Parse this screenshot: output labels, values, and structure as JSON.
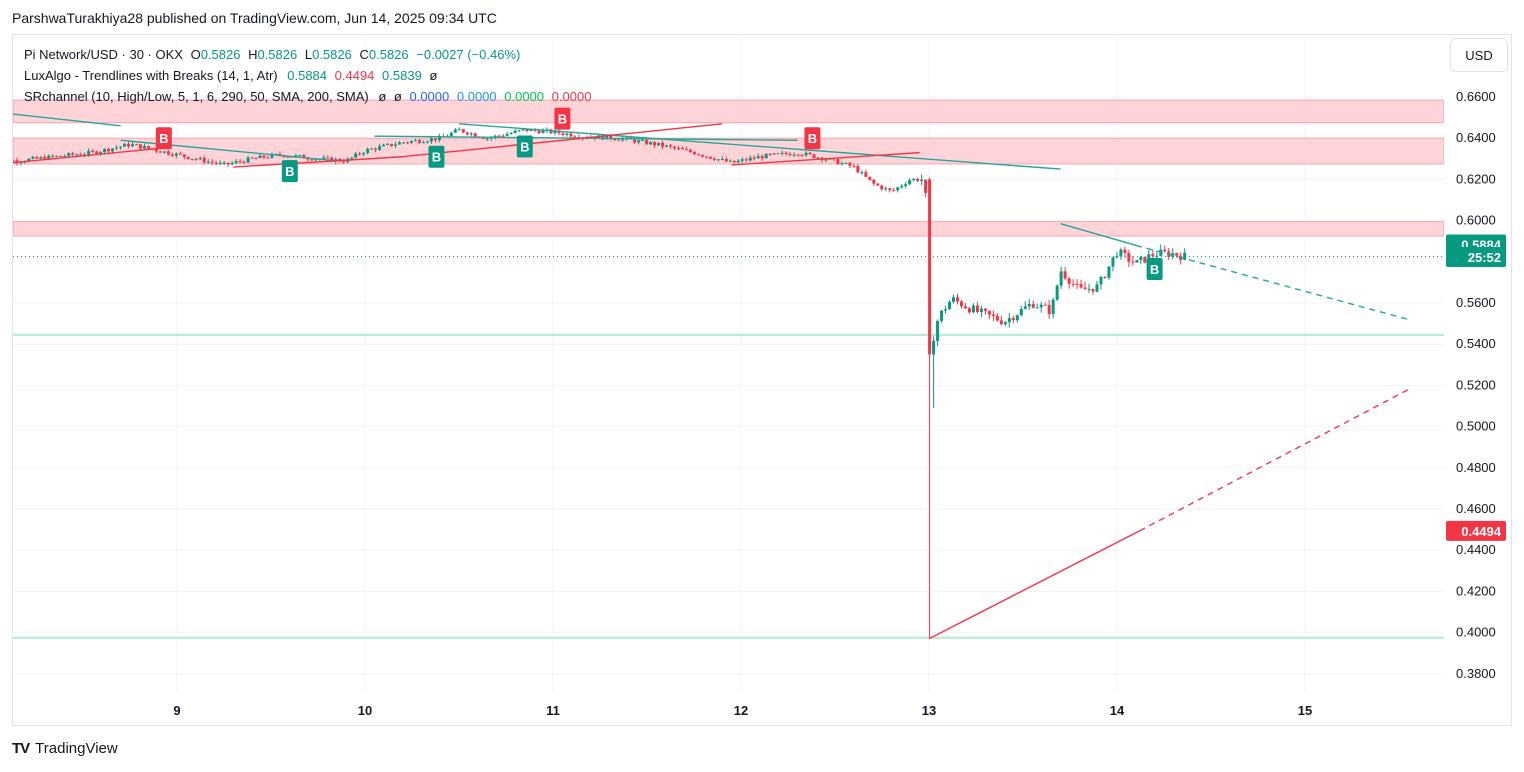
{
  "header": {
    "published_by": "ParshwaTurakhiya28 published on TradingView.com, Jun 14, 2025 09:34 UTC"
  },
  "legend": {
    "symbol": "Pi Network/USD · 30 · OKX",
    "ohlc": {
      "o_label": "O",
      "o": "0.5826",
      "h_label": "H",
      "h": "0.5826",
      "l_label": "L",
      "l": "0.5826",
      "c_label": "C",
      "c": "0.5826",
      "change": "−0.0027 (−0.46%)"
    },
    "indicator1": {
      "name": "LuxAlgo - Trendlines with Breaks (14, 1, Atr)",
      "v1": "0.5884",
      "v2": "0.4494",
      "v3": "0.5839",
      "v4": "ø"
    },
    "indicator2": {
      "name": "SRchannel (10, High/Low, 5, 1, 6, 290, 50, SMA, 200, SMA)",
      "n1": "ø",
      "n2": "ø",
      "v1": "0.0000",
      "v2": "0.0000",
      "v3": "0.0000",
      "v4": "0.0000"
    }
  },
  "currency_button": "USD",
  "footer": {
    "logo": "TV",
    "brand": "TradingView"
  },
  "colors": {
    "up": "#089981",
    "down": "#f23645",
    "zone": "#ffcdd2",
    "support": "#b2ebd0",
    "grid": "#f0f3fa"
  },
  "chart_data": {
    "type": "candlestick",
    "y_axis": {
      "ticks": [
        "0.6600",
        "0.6400",
        "0.6200",
        "0.6000",
        "0.5800",
        "0.5600",
        "0.5400",
        "0.5200",
        "0.5000",
        "0.4800",
        "0.4600",
        "0.4400",
        "0.4200",
        "0.4000",
        "0.3800"
      ],
      "range": [
        0.372,
        0.68
      ]
    },
    "x_axis": {
      "ticks": [
        "9",
        "10",
        "11",
        "12",
        "13",
        "14",
        "15"
      ]
    },
    "price_labels": [
      {
        "value": 0.5884,
        "text": "0.5884",
        "color": "#089981"
      },
      {
        "value": 0.5823,
        "text": "25:52",
        "color": "#089981"
      },
      {
        "value": 0.4494,
        "text": "0.4494",
        "color": "#f23645"
      }
    ],
    "resistance_zones": [
      {
        "low": 0.6475,
        "high": 0.6585
      },
      {
        "low": 0.6275,
        "high": 0.64
      },
      {
        "low": 0.5925,
        "high": 0.5995
      }
    ],
    "support_lines": [
      0.5445,
      0.3975
    ],
    "last_price": 0.5826,
    "trendlines": [
      {
        "color": "#26a69a",
        "dashed": false,
        "points": [
          [
            8.0,
            0.653
          ],
          [
            8.7,
            0.646
          ]
        ]
      },
      {
        "color": "#26a69a",
        "dashed": false,
        "points": [
          [
            8.7,
            0.639
          ],
          [
            9.85,
            0.629
          ]
        ]
      },
      {
        "color": "#26a69a",
        "dashed": false,
        "points": [
          [
            10.05,
            0.641
          ],
          [
            12.3,
            0.639
          ]
        ]
      },
      {
        "color": "#26a69a",
        "dashed": false,
        "points": [
          [
            10.5,
            0.647
          ],
          [
            13.7,
            0.625
          ]
        ]
      },
      {
        "color": "#26a69a",
        "dashed": false,
        "points": [
          [
            13.7,
            0.5985
          ],
          [
            14.1,
            0.588
          ]
        ]
      },
      {
        "color": "#26a69a",
        "dashed": true,
        "points": [
          [
            14.1,
            0.588
          ],
          [
            15.55,
            0.552
          ]
        ]
      },
      {
        "color": "#f23645",
        "dashed": false,
        "points": [
          [
            8.0,
            0.627
          ],
          [
            8.9,
            0.635
          ]
        ]
      },
      {
        "color": "#f23645",
        "dashed": false,
        "points": [
          [
            9.3,
            0.626
          ],
          [
            10.2,
            0.631
          ]
        ]
      },
      {
        "color": "#f23645",
        "dashed": false,
        "points": [
          [
            10.2,
            0.631
          ],
          [
            11.9,
            0.647
          ]
        ]
      },
      {
        "color": "#f23645",
        "dashed": false,
        "points": [
          [
            11.95,
            0.627
          ],
          [
            12.95,
            0.633
          ]
        ]
      },
      {
        "color": "#f23645",
        "dashed": false,
        "points": [
          [
            13.0,
            0.397
          ],
          [
            14.12,
            0.4494
          ]
        ]
      },
      {
        "color": "#f23645",
        "dashed": true,
        "points": [
          [
            14.12,
            0.4494
          ],
          [
            15.55,
            0.518
          ]
        ]
      }
    ],
    "markers": [
      {
        "text": "B",
        "type": "bear",
        "x": 8.05,
        "y": 0.638
      },
      {
        "text": "B",
        "type": "bear",
        "x": 8.93,
        "y": 0.64
      },
      {
        "text": "B",
        "type": "bull",
        "x": 9.6,
        "y": 0.624
      },
      {
        "text": "B",
        "type": "bull",
        "x": 10.38,
        "y": 0.631
      },
      {
        "text": "B",
        "type": "bull",
        "x": 10.85,
        "y": 0.636
      },
      {
        "text": "B",
        "type": "bear",
        "x": 11.05,
        "y": 0.6495
      },
      {
        "text": "B",
        "type": "bear",
        "x": 12.38,
        "y": 0.64
      },
      {
        "text": "B",
        "type": "bull",
        "x": 14.2,
        "y": 0.5765
      }
    ],
    "price_path": [
      [
        8.0,
        0.63
      ],
      [
        8.15,
        0.629
      ],
      [
        8.35,
        0.631
      ],
      [
        8.55,
        0.633
      ],
      [
        8.75,
        0.637
      ],
      [
        8.95,
        0.633
      ],
      [
        9.1,
        0.63
      ],
      [
        9.25,
        0.627
      ],
      [
        9.4,
        0.63
      ],
      [
        9.55,
        0.632
      ],
      [
        9.75,
        0.63
      ],
      [
        9.9,
        0.629
      ],
      [
        10.0,
        0.634
      ],
      [
        10.2,
        0.638
      ],
      [
        10.4,
        0.64
      ],
      [
        10.5,
        0.644
      ],
      [
        10.65,
        0.64
      ],
      [
        10.85,
        0.644
      ],
      [
        11.0,
        0.643
      ],
      [
        11.15,
        0.641
      ],
      [
        11.35,
        0.64
      ],
      [
        11.55,
        0.637
      ],
      [
        11.75,
        0.633
      ],
      [
        11.95,
        0.628
      ],
      [
        12.1,
        0.631
      ],
      [
        12.3,
        0.633
      ],
      [
        12.45,
        0.63
      ],
      [
        12.6,
        0.626
      ],
      [
        12.7,
        0.618
      ],
      [
        12.8,
        0.614
      ],
      [
        12.9,
        0.62
      ],
      [
        12.98,
        0.62
      ],
      [
        13.0,
        0.535
      ],
      [
        13.05,
        0.553
      ],
      [
        13.12,
        0.562
      ],
      [
        13.25,
        0.556
      ],
      [
        13.4,
        0.551
      ],
      [
        13.55,
        0.56
      ],
      [
        13.65,
        0.556
      ],
      [
        13.7,
        0.576
      ],
      [
        13.8,
        0.566
      ],
      [
        13.9,
        0.568
      ],
      [
        14.0,
        0.585
      ],
      [
        14.1,
        0.579
      ],
      [
        14.2,
        0.584
      ],
      [
        14.3,
        0.584
      ],
      [
        14.36,
        0.5826
      ]
    ]
  }
}
